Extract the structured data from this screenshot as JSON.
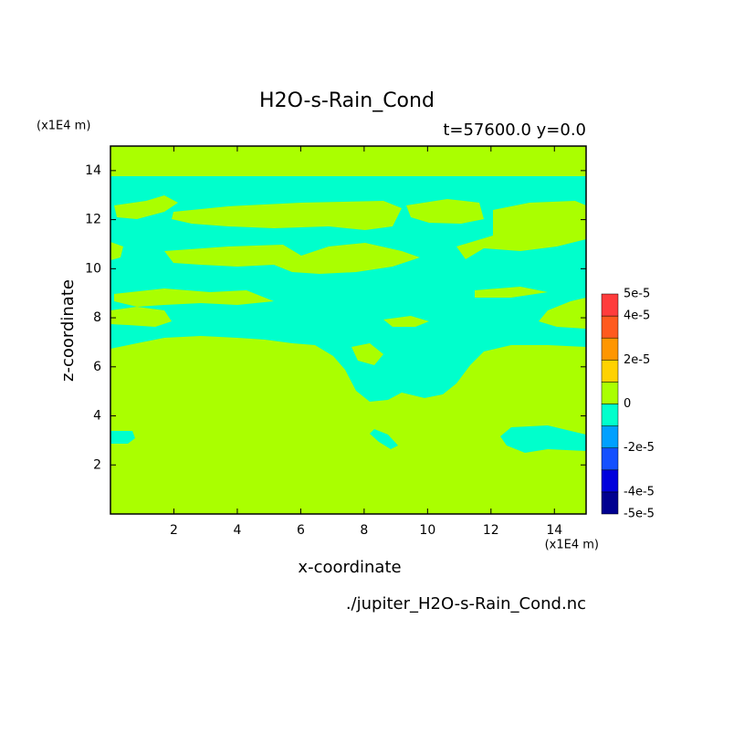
{
  "chart_data": {
    "type": "contour",
    "title": "H2O-s-Rain_Cond",
    "subtitle": "t=57600.0 y=0.0",
    "xlabel": "x-coordinate",
    "ylabel": "z-coordinate",
    "xunit": "(x1E4 m)",
    "yunit": "(x1E4 m)",
    "source": "./jupiter_H2O-s-Rain_Cond.nc",
    "xlim": [
      0,
      15
    ],
    "ylim": [
      0,
      15
    ],
    "xticks": [
      2,
      4,
      6,
      8,
      10,
      12,
      14
    ],
    "yticks": [
      2,
      4,
      6,
      8,
      10,
      12,
      14
    ],
    "colorbar": {
      "levels": [
        -5e-05,
        -4e-05,
        -3e-05,
        -2e-05,
        -1e-05,
        0,
        1e-05,
        2e-05,
        3e-05,
        4e-05,
        5e-05
      ],
      "colors": [
        "#000090",
        "#0000dc",
        "#1450ff",
        "#00a0ff",
        "#00ffcc",
        "#aaff00",
        "#ffd200",
        "#ff9600",
        "#ff5a1e",
        "#ff3c3c"
      ],
      "ticks": [
        {
          "value": 5e-05,
          "label": "5e-5"
        },
        {
          "value": 4e-05,
          "label": "4e-5"
        },
        {
          "value": 2e-05,
          "label": "2e-5"
        },
        0,
        {
          "value": -2e-05,
          "label": "-2e-5"
        },
        {
          "value": -4e-05,
          "label": "-4e-5"
        },
        {
          "value": -5e-05,
          "label": "-5e-5"
        }
      ]
    }
  }
}
